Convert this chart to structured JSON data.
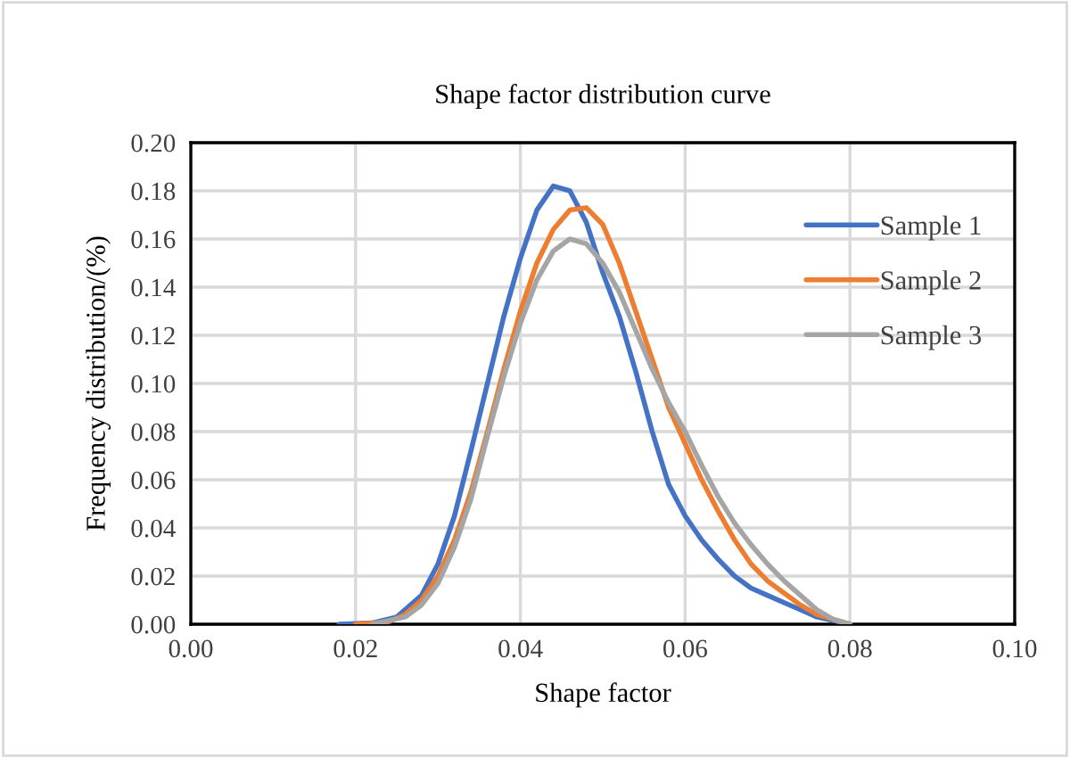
{
  "chart_data": {
    "type": "line",
    "title": "Shape factor distribution curve",
    "xlabel": "Shape factor",
    "ylabel": "Frequency distribution/(%)",
    "xlim": [
      0,
      0.1
    ],
    "ylim": [
      0,
      0.2
    ],
    "xticks": [
      {
        "value": 0,
        "label": "0.00"
      },
      {
        "value": 0.02,
        "label": "0.02"
      },
      {
        "value": 0.04,
        "label": "0.04"
      },
      {
        "value": 0.06,
        "label": "0.06"
      },
      {
        "value": 0.08,
        "label": "0.08"
      },
      {
        "value": 0.1,
        "label": "0.10"
      }
    ],
    "yticks": [
      {
        "value": 0,
        "label": "0.00"
      },
      {
        "value": 0.02,
        "label": "0.02"
      },
      {
        "value": 0.04,
        "label": "0.04"
      },
      {
        "value": 0.06,
        "label": "0.06"
      },
      {
        "value": 0.08,
        "label": "0.08"
      },
      {
        "value": 0.1,
        "label": "0.10"
      },
      {
        "value": 0.12,
        "label": "0.12"
      },
      {
        "value": 0.14,
        "label": "0.14"
      },
      {
        "value": 0.16,
        "label": "0.16"
      },
      {
        "value": 0.18,
        "label": "0.18"
      },
      {
        "value": 0.2,
        "label": "0.20"
      }
    ],
    "grid": true,
    "legend": "top right",
    "marker": "none",
    "line_style": "solid",
    "series": [
      {
        "name": "Sample 1",
        "color": "#4472c4",
        "x": [
          0.018,
          0.022,
          0.025,
          0.028,
          0.03,
          0.032,
          0.034,
          0.036,
          0.038,
          0.04,
          0.042,
          0.044,
          0.046,
          0.048,
          0.05,
          0.052,
          0.054,
          0.056,
          0.058,
          0.06,
          0.062,
          0.064,
          0.066,
          0.068,
          0.07,
          0.072,
          0.074,
          0.076,
          0.08
        ],
        "values": [
          0,
          0.0005,
          0.003,
          0.012,
          0.025,
          0.045,
          0.072,
          0.1,
          0.128,
          0.152,
          0.172,
          0.182,
          0.18,
          0.167,
          0.146,
          0.128,
          0.105,
          0.08,
          0.058,
          0.045,
          0.035,
          0.027,
          0.02,
          0.015,
          0.012,
          0.009,
          0.006,
          0.003,
          0
        ]
      },
      {
        "name": "Sample 2",
        "color": "#ed7d31",
        "x": [
          0.02,
          0.024,
          0.026,
          0.028,
          0.03,
          0.032,
          0.034,
          0.036,
          0.038,
          0.04,
          0.042,
          0.044,
          0.046,
          0.048,
          0.05,
          0.052,
          0.054,
          0.056,
          0.058,
          0.06,
          0.062,
          0.064,
          0.066,
          0.068,
          0.07,
          0.072,
          0.074,
          0.076,
          0.08
        ],
        "values": [
          0,
          0.001,
          0.004,
          0.01,
          0.02,
          0.035,
          0.055,
          0.08,
          0.106,
          0.13,
          0.15,
          0.164,
          0.172,
          0.173,
          0.166,
          0.15,
          0.13,
          0.11,
          0.09,
          0.075,
          0.06,
          0.047,
          0.035,
          0.025,
          0.018,
          0.013,
          0.008,
          0.004,
          0
        ]
      },
      {
        "name": "Sample 3",
        "color": "#a5a5a5",
        "x": [
          0.022,
          0.026,
          0.028,
          0.03,
          0.032,
          0.034,
          0.036,
          0.038,
          0.04,
          0.042,
          0.044,
          0.046,
          0.048,
          0.05,
          0.052,
          0.054,
          0.056,
          0.058,
          0.06,
          0.062,
          0.064,
          0.066,
          0.068,
          0.07,
          0.072,
          0.074,
          0.076,
          0.078,
          0.08
        ],
        "values": [
          0,
          0.003,
          0.008,
          0.017,
          0.032,
          0.052,
          0.078,
          0.103,
          0.125,
          0.143,
          0.155,
          0.16,
          0.158,
          0.15,
          0.138,
          0.122,
          0.106,
          0.092,
          0.08,
          0.066,
          0.053,
          0.042,
          0.033,
          0.025,
          0.018,
          0.012,
          0.006,
          0.002,
          0
        ]
      }
    ]
  }
}
